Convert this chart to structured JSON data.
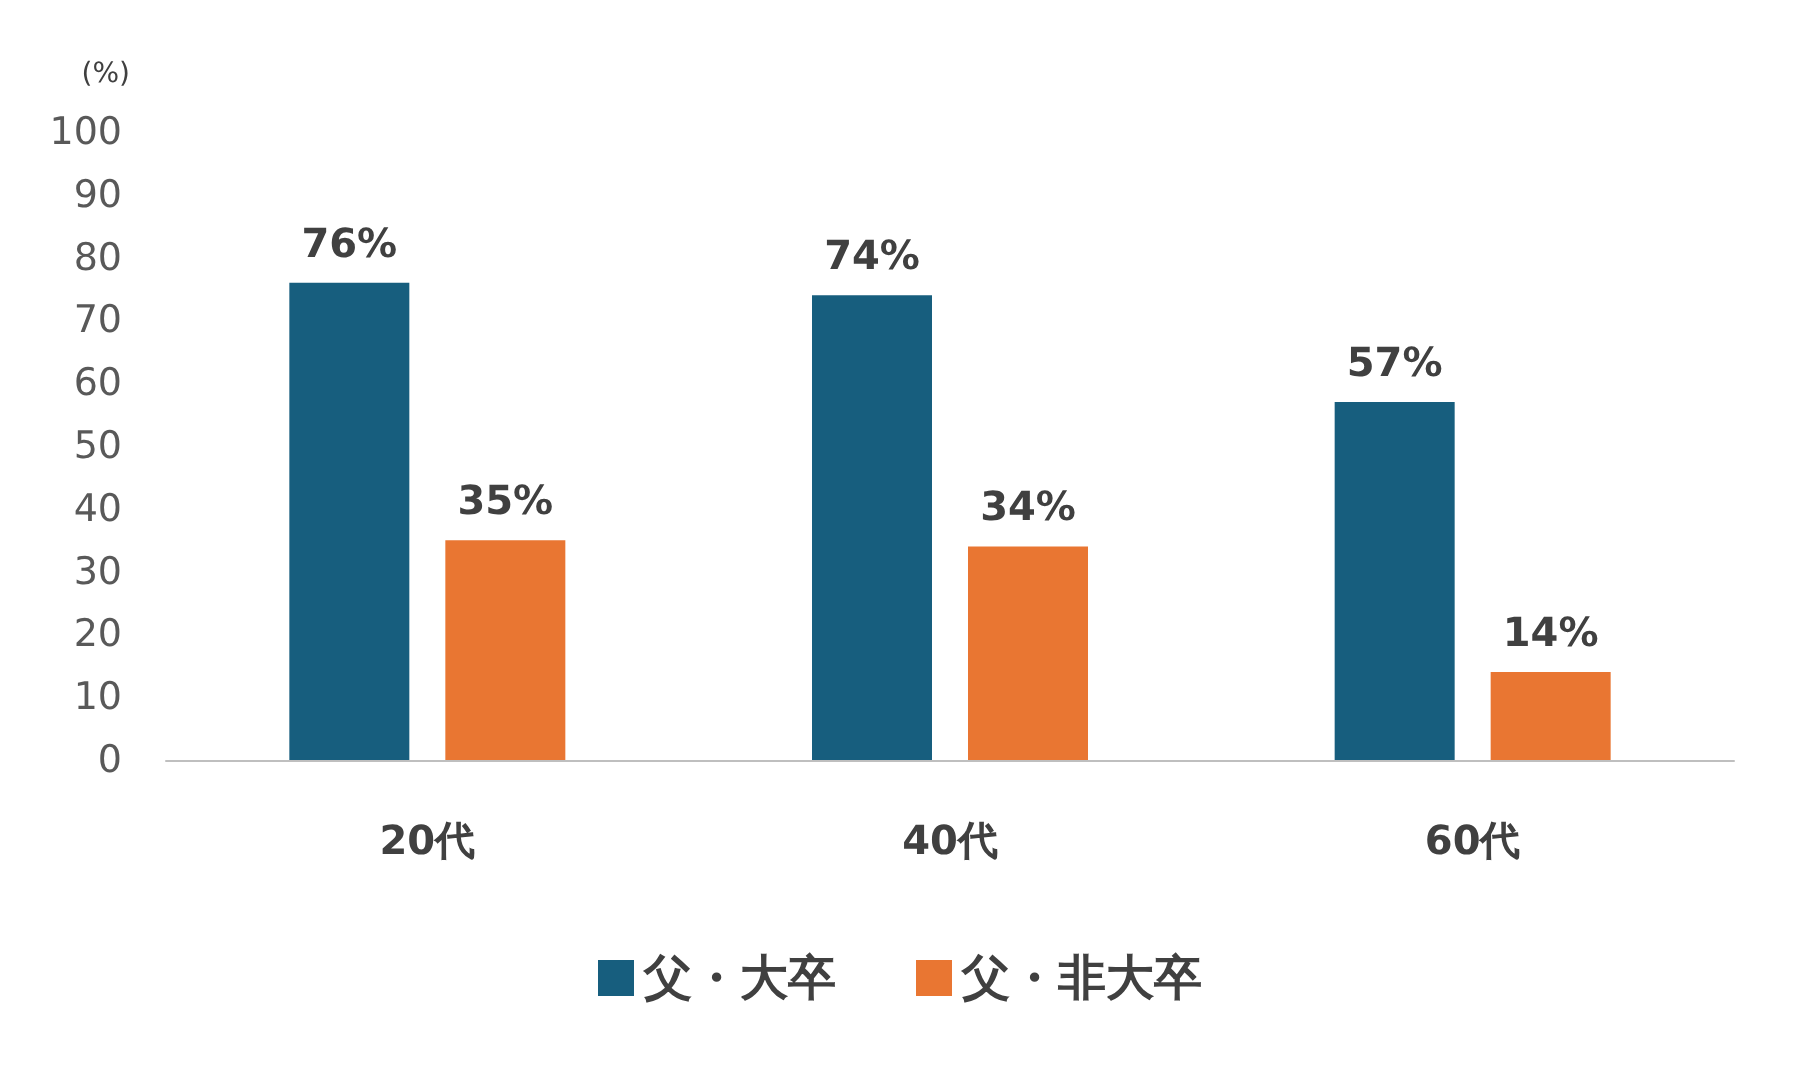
{
  "chart_data": {
    "type": "bar",
    "ylabel": "(%)",
    "categories": [
      "20代",
      "40代",
      "60代"
    ],
    "series": [
      {
        "name": "父・大卒",
        "color": "#175e7e",
        "values": [
          76,
          74,
          57
        ],
        "value_labels": [
          "76%",
          "74%",
          "57%"
        ]
      },
      {
        "name": "父・非大卒",
        "color": "#e97632",
        "values": [
          35,
          34,
          14
        ],
        "value_labels": [
          "35%",
          "34%",
          "14%"
        ]
      }
    ],
    "ylim": [
      0,
      100
    ],
    "yticks": [
      0,
      10,
      20,
      30,
      40,
      50,
      60,
      70,
      80,
      90,
      100
    ],
    "grid": false,
    "legend": "bottom"
  }
}
